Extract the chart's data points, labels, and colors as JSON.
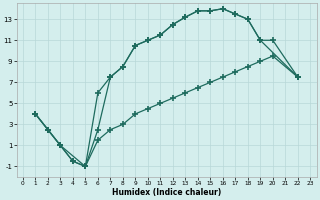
{
  "xlabel": "Humidex (Indice chaleur)",
  "bg_color": "#d4eeed",
  "grid_color": "#b8d8d8",
  "line_color": "#1e6b5e",
  "xlim": [
    -0.5,
    23.5
  ],
  "ylim": [
    -2,
    14.5
  ],
  "xticks": [
    0,
    1,
    2,
    3,
    4,
    5,
    6,
    7,
    8,
    9,
    10,
    11,
    12,
    13,
    14,
    15,
    16,
    17,
    18,
    19,
    20,
    21,
    22,
    23
  ],
  "yticks": [
    -1,
    1,
    3,
    5,
    7,
    9,
    11,
    13
  ],
  "line1_x": [
    1,
    2,
    3,
    4,
    5,
    6,
    7,
    8,
    9,
    10,
    11,
    12,
    13,
    14,
    15,
    16,
    17,
    18,
    19,
    22
  ],
  "line1_y": [
    4,
    2.5,
    1.0,
    -0.5,
    -1.0,
    6.0,
    7.5,
    8.5,
    10.5,
    11.0,
    11.5,
    12.5,
    13.2,
    13.8,
    13.8,
    14.0,
    13.5,
    13.0,
    11.0,
    7.5
  ],
  "line2_x": [
    1,
    2,
    3,
    4,
    5,
    6,
    7,
    8,
    9,
    10,
    11,
    12,
    13,
    14,
    15,
    16,
    17,
    18,
    19,
    20,
    22
  ],
  "line2_y": [
    4,
    2.5,
    1.0,
    -0.5,
    -1.0,
    2.5,
    7.5,
    8.5,
    10.5,
    11.0,
    11.5,
    12.5,
    13.2,
    13.8,
    13.8,
    14.0,
    13.5,
    13.0,
    11.0,
    11.0,
    7.5
  ],
  "line3_x": [
    1,
    2,
    3,
    5,
    6,
    7,
    8,
    9,
    10,
    11,
    12,
    13,
    14,
    15,
    16,
    17,
    18,
    19,
    20,
    22
  ],
  "line3_y": [
    4,
    2.5,
    1.0,
    -1.0,
    1.5,
    2.5,
    3.0,
    4.0,
    4.5,
    5.0,
    5.5,
    6.0,
    6.5,
    7.0,
    7.5,
    8.0,
    8.5,
    9.0,
    9.5,
    7.5
  ]
}
